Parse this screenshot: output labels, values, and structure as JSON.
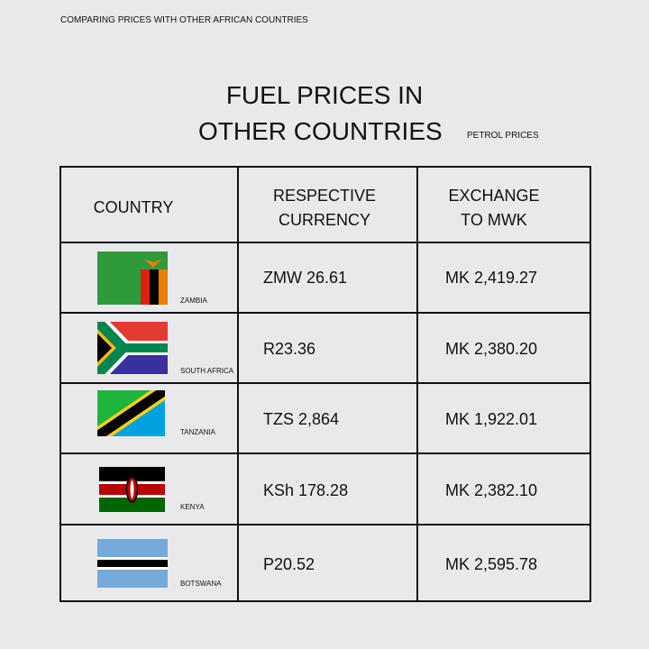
{
  "header": {
    "caption": "COMPARING PRICES WITH OTHER AFRICAN COUNTRIES",
    "title_line1": "FUEL PRICES IN",
    "title_line2": "OTHER COUNTRIES",
    "subtitle": "PETROL PRICES"
  },
  "table": {
    "columns": [
      "COUNTRY",
      "RESPECTIVE CURRENCY",
      "EXCHANGE TO MWK"
    ],
    "rows": [
      [
        "ZAMBIA",
        "ZMW 26.61",
        "MK 2,419.27"
      ],
      [
        "SOUTH AFRICA",
        "R23.36",
        "MK 2,380.20"
      ],
      [
        "TANZANIA",
        "TZS 2,864",
        "MK 1,922.01"
      ],
      [
        "KENYA",
        "KSh 178.28",
        "MK 2,382.10"
      ],
      [
        "BOTSWANA",
        "P20.52",
        "MK 2,595.78"
      ]
    ]
  }
}
